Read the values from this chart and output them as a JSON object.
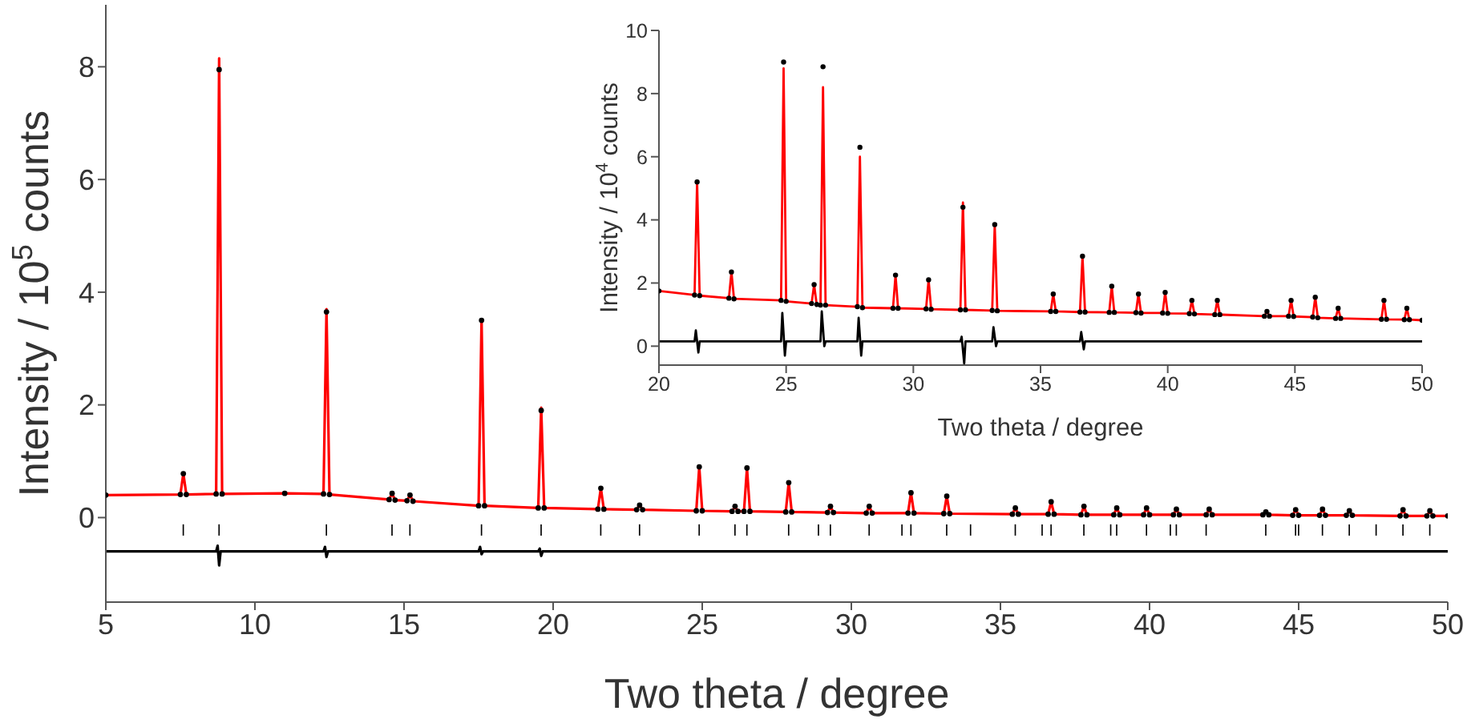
{
  "chart_data": [
    {
      "type": "line",
      "xlabel": "Two theta / degree",
      "ylabel": "Intensity / 10$^{5}$ counts",
      "xlim": [
        5,
        50
      ],
      "ylim": [
        -1.5,
        9.1
      ],
      "xticks": [
        5,
        10,
        15,
        20,
        25,
        30,
        35,
        40,
        45,
        50
      ],
      "yticks": [
        0,
        2,
        4,
        6,
        8
      ],
      "line_style": "solid",
      "x": [
        5,
        7.5,
        7.6,
        7.7,
        8.7,
        8.8,
        8.9,
        11,
        12.3,
        12.4,
        12.5,
        14.5,
        14.6,
        14.7,
        15.1,
        15.2,
        15.3,
        17.5,
        17.6,
        17.7,
        19.5,
        19.6,
        19.7,
        21.5,
        21.6,
        21.7,
        22.8,
        22.9,
        23.0,
        24.8,
        24.9,
        25.0,
        26.0,
        26.1,
        26.2,
        26.4,
        26.5,
        26.6,
        27.8,
        27.9,
        28.0,
        29.2,
        29.3,
        29.4,
        30.5,
        30.6,
        30.7,
        31.9,
        32.0,
        32.1,
        33.1,
        33.2,
        33.3,
        35.4,
        35.5,
        35.6,
        36.6,
        36.7,
        36.8,
        37.7,
        37.8,
        37.9,
        38.8,
        38.9,
        39.0,
        39.8,
        39.9,
        40.0,
        40.8,
        40.9,
        41.0,
        41.9,
        42.0,
        42.1,
        43.8,
        43.9,
        44.0,
        44.8,
        44.9,
        45.0,
        45.7,
        45.8,
        45.9,
        46.6,
        46.7,
        46.8,
        48.4,
        48.5,
        48.6,
        49.3,
        49.4,
        49.5,
        50
      ],
      "series": [
        {
          "type": "scatter",
          "marker": "circle",
          "color": "#000000",
          "values": [
            0.4,
            0.41,
            0.78,
            0.41,
            0.42,
            7.95,
            0.42,
            0.43,
            0.42,
            3.65,
            0.41,
            0.32,
            0.43,
            0.31,
            0.3,
            0.4,
            0.29,
            0.21,
            3.5,
            0.21,
            0.17,
            1.9,
            0.17,
            0.15,
            0.52,
            0.15,
            0.14,
            0.22,
            0.14,
            0.12,
            0.9,
            0.12,
            0.11,
            0.2,
            0.11,
            0.11,
            0.88,
            0.11,
            0.1,
            0.62,
            0.1,
            0.09,
            0.2,
            0.09,
            0.08,
            0.2,
            0.08,
            0.08,
            0.44,
            0.08,
            0.07,
            0.38,
            0.07,
            0.06,
            0.17,
            0.06,
            0.06,
            0.28,
            0.06,
            0.05,
            0.2,
            0.05,
            0.05,
            0.17,
            0.05,
            0.05,
            0.17,
            0.05,
            0.05,
            0.15,
            0.05,
            0.05,
            0.15,
            0.05,
            0.05,
            0.1,
            0.05,
            0.04,
            0.14,
            0.04,
            0.04,
            0.15,
            0.04,
            0.04,
            0.12,
            0.04,
            0.03,
            0.14,
            0.03,
            0.03,
            0.12,
            0.03,
            0.03
          ]
        },
        {
          "color": "#ff0000",
          "values": [
            0.4,
            0.41,
            0.78,
            0.41,
            0.42,
            8.15,
            0.42,
            0.43,
            0.42,
            3.7,
            0.41,
            0.32,
            0.43,
            0.31,
            0.3,
            0.4,
            0.29,
            0.21,
            3.52,
            0.21,
            0.17,
            1.95,
            0.17,
            0.15,
            0.52,
            0.15,
            0.14,
            0.22,
            0.14,
            0.12,
            0.9,
            0.12,
            0.11,
            0.2,
            0.11,
            0.11,
            0.88,
            0.11,
            0.1,
            0.62,
            0.1,
            0.09,
            0.2,
            0.09,
            0.08,
            0.2,
            0.08,
            0.08,
            0.44,
            0.08,
            0.07,
            0.38,
            0.07,
            0.06,
            0.17,
            0.06,
            0.06,
            0.28,
            0.06,
            0.05,
            0.2,
            0.05,
            0.05,
            0.17,
            0.05,
            0.05,
            0.17,
            0.05,
            0.05,
            0.15,
            0.05,
            0.05,
            0.15,
            0.05,
            0.05,
            0.1,
            0.05,
            0.04,
            0.14,
            0.04,
            0.04,
            0.15,
            0.04,
            0.04,
            0.12,
            0.04,
            0.03,
            0.14,
            0.03,
            0.03,
            0.12,
            0.03,
            0.03
          ]
        },
        {
          "color": "#000000",
          "x": [
            5,
            8.7,
            8.75,
            8.8,
            8.85,
            12.3,
            12.35,
            12.4,
            12.45,
            17.5,
            17.55,
            17.6,
            17.65,
            19.5,
            19.55,
            19.6,
            19.65,
            50
          ],
          "values": [
            -0.6,
            -0.6,
            -0.5,
            -0.85,
            -0.6,
            -0.6,
            -0.52,
            -0.7,
            -0.6,
            -0.6,
            -0.52,
            -0.65,
            -0.6,
            -0.6,
            -0.55,
            -0.68,
            -0.6,
            -0.6
          ]
        },
        {
          "type": "bar",
          "color": "#000000",
          "base": [
            -0.32,
            -0.32,
            -0.32,
            -0.32,
            -0.32,
            -0.32,
            -0.32,
            -0.32,
            -0.32,
            -0.32,
            -0.32,
            -0.32,
            -0.32,
            -0.32,
            -0.32,
            -0.32,
            -0.32,
            -0.32,
            -0.32,
            -0.32,
            -0.32,
            -0.32,
            -0.32,
            -0.32,
            -0.32,
            -0.32,
            -0.32,
            -0.32,
            -0.32,
            -0.32,
            -0.32,
            -0.32,
            -0.32,
            -0.32,
            -0.32,
            -0.32,
            -0.32,
            -0.32
          ],
          "x": [
            7.6,
            8.8,
            12.4,
            14.6,
            15.2,
            17.6,
            19.6,
            21.6,
            22.9,
            24.9,
            26.1,
            26.5,
            27.9,
            28.9,
            29.3,
            30.6,
            31.7,
            32.0,
            33.2,
            34.0,
            35.5,
            36.4,
            36.7,
            37.8,
            38.7,
            38.9,
            39.9,
            40.7,
            40.9,
            41.9,
            43.9,
            44.9,
            45.0,
            45.8,
            46.7,
            47.6,
            48.5,
            49.4
          ],
          "values": [
            0.2,
            0.2,
            0.2,
            0.2,
            0.2,
            0.2,
            0.2,
            0.2,
            0.2,
            0.2,
            0.2,
            0.2,
            0.2,
            0.2,
            0.2,
            0.2,
            0.2,
            0.2,
            0.2,
            0.2,
            0.2,
            0.2,
            0.2,
            0.2,
            0.2,
            0.2,
            0.2,
            0.2,
            0.2,
            0.2,
            0.2,
            0.2,
            0.2,
            0.2,
            0.2,
            0.2,
            0.2,
            0.2
          ]
        }
      ]
    },
    {
      "type": "line",
      "xlabel": "Two theta / degree",
      "ylabel": "Intensity / 10$^{4}$ counts",
      "xlim": [
        20,
        50
      ],
      "ylim": [
        -0.6,
        10
      ],
      "xticks": [
        20,
        25,
        30,
        35,
        40,
        45,
        50
      ],
      "yticks": [
        0,
        2,
        4,
        6,
        8,
        10
      ],
      "line_style": "solid",
      "x": [
        20,
        21.4,
        21.5,
        21.6,
        22.75,
        22.85,
        22.95,
        24.8,
        24.9,
        25.0,
        26.0,
        26.1,
        26.2,
        26.35,
        26.45,
        26.55,
        27.8,
        27.9,
        28.0,
        29.2,
        29.3,
        29.4,
        30.5,
        30.6,
        30.7,
        31.85,
        31.95,
        32.05,
        33.1,
        33.2,
        33.3,
        35.4,
        35.5,
        35.6,
        36.55,
        36.65,
        36.75,
        37.7,
        37.8,
        37.9,
        38.75,
        38.85,
        38.95,
        39.8,
        39.9,
        40.0,
        40.85,
        40.95,
        41.05,
        41.85,
        41.95,
        42.05,
        43.8,
        43.9,
        44.0,
        44.75,
        44.85,
        44.95,
        45.7,
        45.8,
        45.9,
        46.6,
        46.7,
        46.8,
        48.4,
        48.5,
        48.6,
        49.3,
        49.4,
        49.5,
        50
      ],
      "series": [
        {
          "type": "scatter",
          "marker": "circle",
          "color": "#000000",
          "values": [
            1.75,
            1.62,
            5.2,
            1.6,
            1.52,
            2.35,
            1.5,
            1.45,
            9.0,
            1.42,
            1.35,
            1.95,
            1.32,
            1.3,
            8.85,
            1.3,
            1.25,
            6.3,
            1.22,
            1.2,
            2.25,
            1.2,
            1.18,
            2.1,
            1.17,
            1.15,
            4.4,
            1.15,
            1.13,
            3.85,
            1.12,
            1.1,
            1.65,
            1.1,
            1.08,
            2.85,
            1.08,
            1.07,
            1.9,
            1.07,
            1.06,
            1.65,
            1.05,
            1.05,
            1.7,
            1.04,
            1.03,
            1.45,
            1.02,
            1.0,
            1.45,
            1.0,
            0.95,
            1.1,
            0.95,
            0.95,
            1.45,
            0.94,
            0.92,
            1.55,
            0.9,
            0.88,
            1.2,
            0.88,
            0.85,
            1.45,
            0.85,
            0.84,
            1.2,
            0.84,
            0.82
          ]
        },
        {
          "color": "#ff0000",
          "values": [
            1.75,
            1.62,
            5.2,
            1.6,
            1.52,
            2.35,
            1.5,
            1.45,
            8.8,
            1.42,
            1.35,
            1.95,
            1.32,
            1.3,
            8.2,
            1.3,
            1.25,
            6.0,
            1.22,
            1.2,
            2.25,
            1.2,
            1.18,
            2.1,
            1.17,
            1.15,
            4.55,
            1.15,
            1.13,
            3.85,
            1.12,
            1.1,
            1.65,
            1.1,
            1.08,
            2.85,
            1.08,
            1.07,
            1.9,
            1.07,
            1.06,
            1.65,
            1.05,
            1.05,
            1.7,
            1.04,
            1.03,
            1.45,
            1.02,
            1.0,
            1.45,
            1.0,
            0.95,
            1.1,
            0.95,
            0.95,
            1.45,
            0.94,
            0.92,
            1.55,
            0.9,
            0.88,
            1.2,
            0.88,
            0.85,
            1.45,
            0.85,
            0.84,
            1.2,
            0.84,
            0.82
          ]
        },
        {
          "color": "#000000",
          "x": [
            20,
            21.4,
            21.45,
            21.55,
            21.6,
            24.8,
            24.85,
            24.95,
            25.0,
            26.35,
            26.4,
            26.5,
            26.55,
            27.8,
            27.85,
            27.95,
            28.0,
            31.85,
            31.9,
            32.0,
            32.05,
            33.1,
            33.15,
            33.25,
            33.3,
            36.55,
            36.6,
            36.7,
            36.75,
            50
          ],
          "values": [
            0.15,
            0.15,
            0.5,
            -0.2,
            0.15,
            0.15,
            1.05,
            -0.3,
            0.15,
            0.15,
            1.1,
            0.0,
            0.15,
            0.15,
            0.9,
            -0.3,
            0.15,
            0.15,
            0.3,
            -0.55,
            0.15,
            0.15,
            0.6,
            0.0,
            0.15,
            0.15,
            0.45,
            -0.1,
            0.15,
            0.15
          ]
        }
      ]
    }
  ]
}
